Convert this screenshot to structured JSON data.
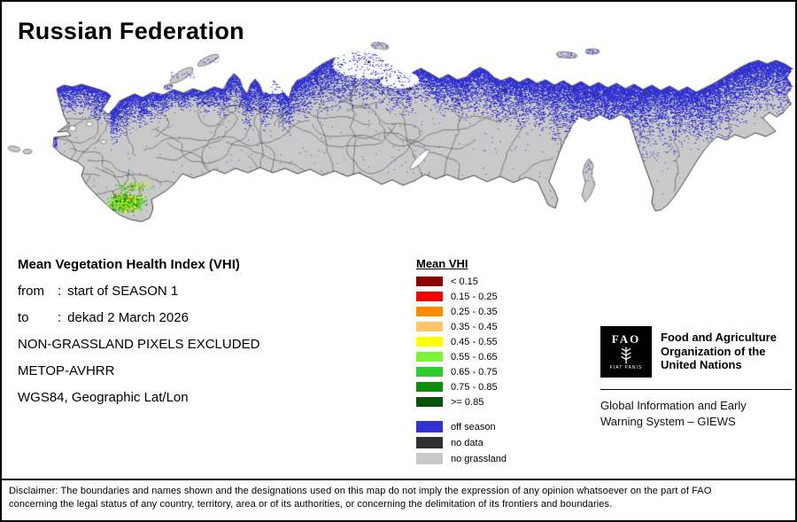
{
  "title": "Russian Federation",
  "info": {
    "heading": "Mean Vegetation Health Index (VHI)",
    "from_label": "from",
    "from_sep": ":",
    "from_value": "start of SEASON 1",
    "to_label": "to",
    "to_sep": ":",
    "to_value": "dekad 2 March 2026",
    "exclusion_note": "NON-GRASSLAND PIXELS EXCLUDED",
    "sensor": "METOP-AVHRR",
    "projection": "WGS84, Geographic Lat/Lon"
  },
  "legend": {
    "title": "Mean VHI",
    "classes": [
      {
        "label": "< 0.15",
        "color": "#8d0000"
      },
      {
        "label": "0.15 - 0.25",
        "color": "#f30000"
      },
      {
        "label": "0.25 - 0.35",
        "color": "#ff8a00"
      },
      {
        "label": "0.35 - 0.45",
        "color": "#fdc46a"
      },
      {
        "label": "0.45 - 0.55",
        "color": "#ffff00"
      },
      {
        "label": "0.55 - 0.65",
        "color": "#7cf23b"
      },
      {
        "label": "0.65 - 0.75",
        "color": "#2ecc2e"
      },
      {
        "label": "0.75 - 0.85",
        "color": "#0e8c0e"
      },
      {
        "label": ">= 0.85",
        "color": "#07510a"
      }
    ],
    "extra": [
      {
        "label": "off season",
        "color": "#3232d2"
      },
      {
        "label": "no data",
        "color": "#2f2f2f"
      },
      {
        "label": "no grassland",
        "color": "#c9c9c9"
      }
    ]
  },
  "fao": {
    "logo_text": "FAO",
    "logo_motto": "FIAT PANIS",
    "org_name_lines": [
      "Food and Agriculture",
      "Organization of the",
      "United Nations"
    ],
    "giews_lines": [
      "Global Information and Early",
      "Warning System – GIEWS"
    ]
  },
  "disclaimer": {
    "line1": "Disclaimer: The boundaries and names shown and the designations used on this map do not imply the expression of any opinion whatsoever on the part of FAO",
    "line2": "concerning the legal status of any country, territory, area or of its authorities, or concerning the delimitation of its frontiers and boundaries."
  }
}
